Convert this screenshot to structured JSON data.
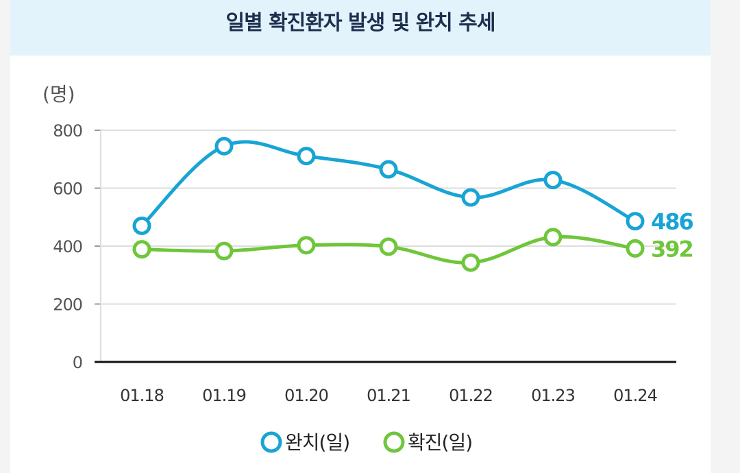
{
  "chart_data": {
    "type": "line",
    "title": "일별 확진환자 발생 및 완치 추세",
    "unit_label": "(명)",
    "categories": [
      "01.18",
      "01.19",
      "01.20",
      "01.21",
      "01.22",
      "01.23",
      "01.24"
    ],
    "y_ticks": [
      0,
      200,
      400,
      600,
      800
    ],
    "ylim": [
      0,
      800
    ],
    "series": [
      {
        "name": "완치(일)",
        "color": "#18a4d4",
        "values": [
          470,
          745,
          711,
          665,
          568,
          628,
          486
        ],
        "end_label": "486"
      },
      {
        "name": "확진(일)",
        "color": "#6fc63b",
        "values": [
          389,
          383,
          403,
          398,
          343,
          431,
          392
        ],
        "end_label": "392"
      }
    ],
    "legend_position": "bottom-center"
  }
}
